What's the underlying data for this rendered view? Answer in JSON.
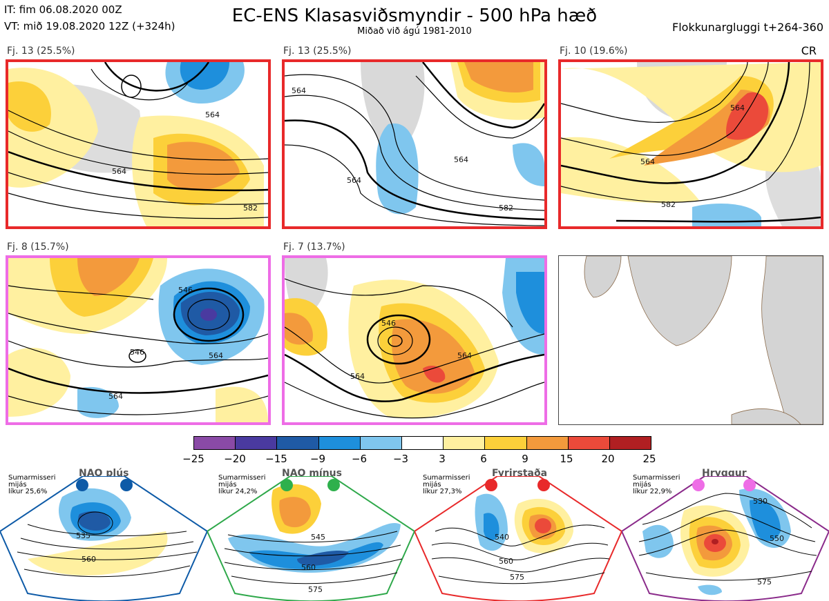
{
  "header": {
    "it_line": "IT: fim 06.08.2020 00Z",
    "vt_line": "VT: mið 19.08.2020 12Z  (+324h)",
    "title": "EC-ENS Klasasviðsmyndir - 500 hPa hæð",
    "subtitle": "Miðað við ágú 1981-2010",
    "window": "Flokkunargluggi t+264-360",
    "code": "CR"
  },
  "panels": [
    {
      "label": "Fj. 13 (25.5%)",
      "border": "#e8292a",
      "contours": [
        "564",
        "564",
        "582"
      ]
    },
    {
      "label": "Fj. 13 (25.5%)",
      "border": "#e8292a",
      "contours": [
        "564",
        "564",
        "564",
        "582"
      ]
    },
    {
      "label": "Fj. 10 (19.6%)",
      "border": "#e8292a",
      "contours": [
        "564",
        "564",
        "582"
      ]
    },
    {
      "label": "Fj. 8 (15.7%)",
      "border": "#ee6de6",
      "contours": [
        "546",
        "564",
        "564",
        "546"
      ]
    },
    {
      "label": "Fj. 7 (13.7%)",
      "border": "#ee6de6",
      "contours": [
        "546",
        "564",
        "564"
      ]
    }
  ],
  "colorbar": {
    "ticks": [
      "−25",
      "−20",
      "−15",
      "−9",
      "−6",
      "−3",
      "3",
      "6",
      "9",
      "15",
      "20",
      "25"
    ],
    "colors": [
      "#8a4aa6",
      "#4a3aa0",
      "#1f5aa5",
      "#1e8fdc",
      "#7fc6ee",
      "#ffffff",
      "#fff0a0",
      "#fcd03a",
      "#f39a3c",
      "#eb4a3a",
      "#b01f22"
    ]
  },
  "climatology": [
    {
      "title": "NAO plús",
      "note": [
        "Sumarmisseri",
        "mijás",
        "líkur 25,6%"
      ],
      "color": "#0d5aa7",
      "dot_color": "#0d5aa7",
      "contours": [
        "535",
        "560"
      ]
    },
    {
      "title": "NAO mínus",
      "note": [
        "Sumarmisseri",
        "mijás",
        "líkur 24,2%"
      ],
      "color": "#2ea84a",
      "dot_color": "#2eb04c",
      "contours": [
        "545",
        "560",
        "575"
      ]
    },
    {
      "title": "Fyrirstaða",
      "note": [
        "Sumarmisseri",
        "mijás",
        "líkur 27,3%"
      ],
      "color": "#e8292a",
      "dot_color": "#e8292a",
      "contours": [
        "540",
        "560",
        "575"
      ]
    },
    {
      "title": "Hryggur",
      "note": [
        "Sumarmisseri",
        "mijás",
        "líkur 22,9%"
      ],
      "color": "#8a2a8a",
      "dot_color": "#ee6de6",
      "contours": [
        "530",
        "550",
        "575"
      ]
    }
  ]
}
